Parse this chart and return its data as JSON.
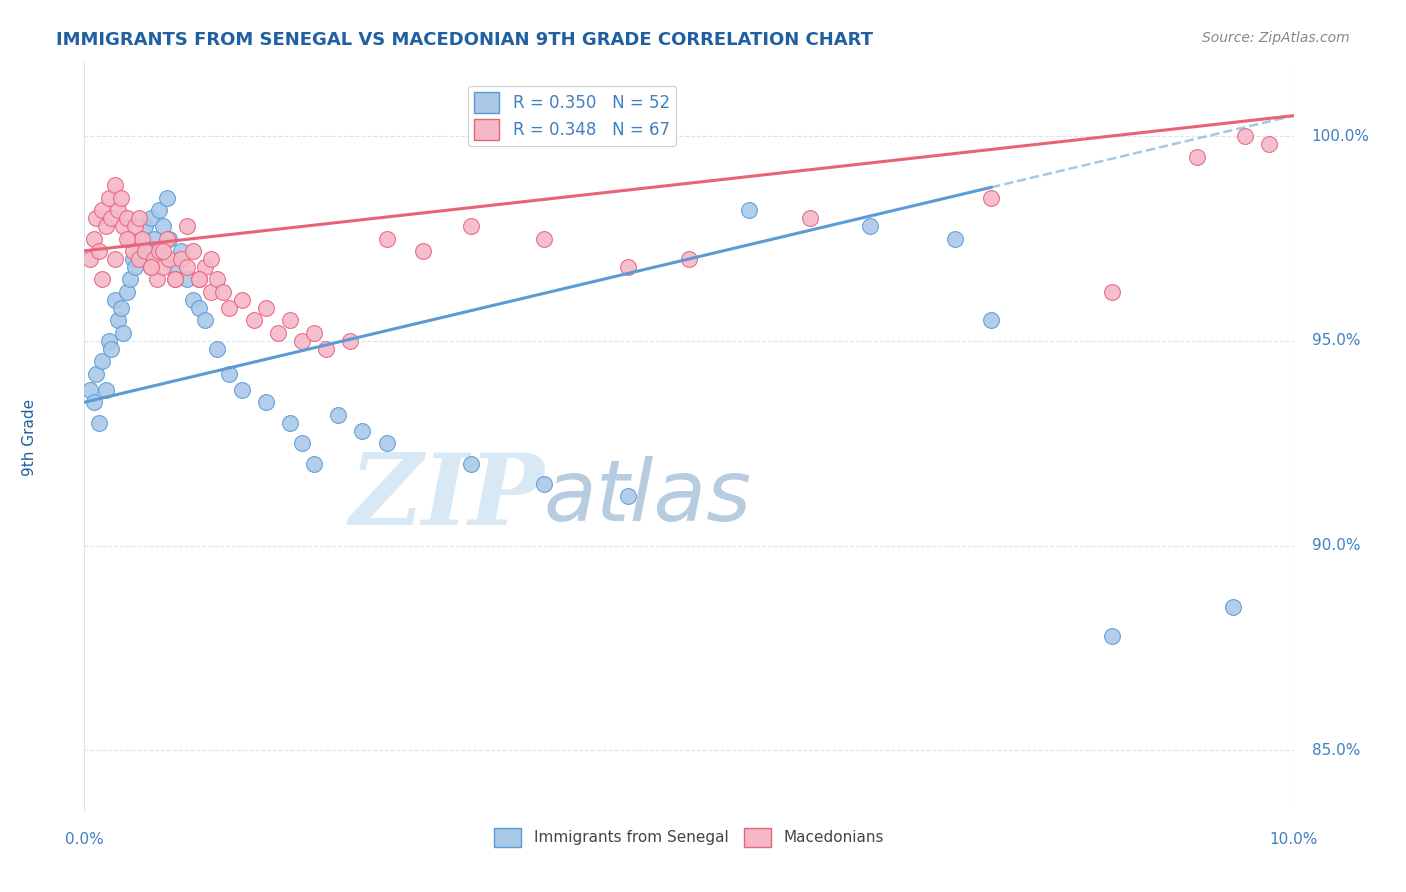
{
  "title": "IMMIGRANTS FROM SENEGAL VS MACEDONIAN 9TH GRADE CORRELATION CHART",
  "source_text": "Source: ZipAtlas.com",
  "ylabel": "9th Grade",
  "right_yticks": [
    85.0,
    90.0,
    95.0,
    100.0
  ],
  "xlim": [
    0.0,
    10.0
  ],
  "ylim": [
    83.5,
    101.8
  ],
  "legend_entries": [
    {
      "label": "R = 0.350   N = 52"
    },
    {
      "label": "R = 0.348   N = 67"
    }
  ],
  "blue_scatter_x": [
    0.05,
    0.08,
    0.1,
    0.12,
    0.15,
    0.18,
    0.2,
    0.22,
    0.25,
    0.28,
    0.3,
    0.32,
    0.35,
    0.38,
    0.4,
    0.42,
    0.45,
    0.48,
    0.5,
    0.52,
    0.55,
    0.58,
    0.6,
    0.62,
    0.65,
    0.68,
    0.7,
    0.75,
    0.8,
    0.85,
    0.9,
    0.95,
    1.0,
    1.1,
    1.2,
    1.3,
    1.5,
    1.7,
    1.8,
    1.9,
    2.1,
    2.3,
    2.5,
    3.2,
    3.8,
    4.5,
    5.5,
    6.5,
    7.2,
    7.5,
    8.5,
    9.5
  ],
  "blue_scatter_y": [
    93.8,
    93.5,
    94.2,
    93.0,
    94.5,
    93.8,
    95.0,
    94.8,
    96.0,
    95.5,
    95.8,
    95.2,
    96.2,
    96.5,
    97.0,
    96.8,
    97.2,
    97.5,
    97.8,
    97.0,
    98.0,
    97.5,
    97.2,
    98.2,
    97.8,
    98.5,
    97.5,
    96.8,
    97.2,
    96.5,
    96.0,
    95.8,
    95.5,
    94.8,
    94.2,
    93.8,
    93.5,
    93.0,
    92.5,
    92.0,
    93.2,
    92.8,
    92.5,
    92.0,
    91.5,
    91.2,
    98.2,
    97.8,
    97.5,
    95.5,
    87.8,
    88.5
  ],
  "pink_scatter_x": [
    0.05,
    0.08,
    0.1,
    0.12,
    0.15,
    0.18,
    0.2,
    0.22,
    0.25,
    0.28,
    0.3,
    0.32,
    0.35,
    0.38,
    0.4,
    0.42,
    0.45,
    0.48,
    0.5,
    0.55,
    0.58,
    0.6,
    0.62,
    0.65,
    0.68,
    0.7,
    0.75,
    0.8,
    0.85,
    0.9,
    0.95,
    1.0,
    1.05,
    1.1,
    1.2,
    1.3,
    1.4,
    1.5,
    1.6,
    1.7,
    1.8,
    1.9,
    2.0,
    2.2,
    2.5,
    2.8,
    3.2,
    3.8,
    4.5,
    5.0,
    6.0,
    7.5,
    8.5,
    9.2,
    9.6,
    9.8,
    0.15,
    0.25,
    0.35,
    0.45,
    0.55,
    0.65,
    0.75,
    0.85,
    0.95,
    1.05,
    1.15
  ],
  "pink_scatter_y": [
    97.0,
    97.5,
    98.0,
    97.2,
    98.2,
    97.8,
    98.5,
    98.0,
    98.8,
    98.2,
    98.5,
    97.8,
    98.0,
    97.5,
    97.2,
    97.8,
    97.0,
    97.5,
    97.2,
    96.8,
    97.0,
    96.5,
    97.2,
    96.8,
    97.5,
    97.0,
    96.5,
    97.0,
    96.8,
    97.2,
    96.5,
    96.8,
    96.2,
    96.5,
    95.8,
    96.0,
    95.5,
    95.8,
    95.2,
    95.5,
    95.0,
    95.2,
    94.8,
    95.0,
    97.5,
    97.2,
    97.8,
    97.5,
    96.8,
    97.0,
    98.0,
    98.5,
    96.2,
    99.5,
    100.0,
    99.8,
    96.5,
    97.0,
    97.5,
    98.0,
    96.8,
    97.2,
    96.5,
    97.8,
    96.5,
    97.0,
    96.2
  ],
  "blue_line": {
    "x0": 0.0,
    "x1": 10.0,
    "y0": 93.5,
    "y1": 100.5
  },
  "blue_dash_start": 7.5,
  "pink_line": {
    "x0": 0.0,
    "x1": 10.0,
    "y0": 97.2,
    "y1": 100.5
  },
  "blue_color": "#5b9bd5",
  "pink_color": "#e8637a",
  "blue_scatter_color": "#aac9e8",
  "pink_scatter_color": "#f5b8c8",
  "watermark_zip": "ZIP",
  "watermark_atlas": "atlas",
  "watermark_color_zip": "#d8e8f5",
  "watermark_color_atlas": "#b8cce0",
  "grid_color": "#d8e4ee",
  "title_color": "#2060a0",
  "axis_label_color": "#2060a0",
  "tick_color": "#4080c0",
  "source_color": "#888888",
  "background_color": "#ffffff",
  "figsize": [
    14.06,
    8.92
  ],
  "dpi": 100
}
